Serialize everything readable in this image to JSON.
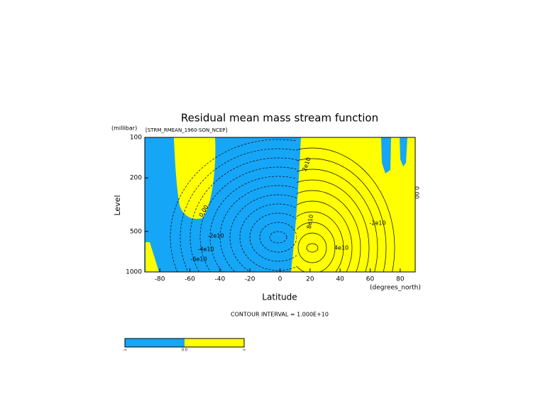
{
  "chart_data": {
    "type": "contour",
    "title": "Residual mean mass stream function",
    "subtitle": "[STRM_RMEAN_1960-SON_NCEP]",
    "y_units": "(millibar)",
    "y_label": "Level",
    "x_label": "Latitude",
    "x_units": "(degrees_north)",
    "note": "CONTOUR INTERVAL = 1.000E+10",
    "xlim": [
      -90,
      90
    ],
    "xticks": [
      -80,
      -60,
      -40,
      -20,
      0,
      20,
      40,
      60,
      80
    ],
    "ylim": [
      1000,
      100
    ],
    "yticks": [
      100,
      200,
      500,
      1000
    ],
    "y_log": true,
    "fill_colors": [
      "#16a6f7",
      "#ffff00"
    ],
    "contour_labels": [
      "0.00",
      "-2e10",
      "-4e10",
      "-6e10",
      "2e10",
      "8e10",
      "-2e10",
      "4e10",
      "0.00"
    ],
    "colorbar_labels": [
      "-∞",
      "0.0",
      "∞"
    ]
  }
}
